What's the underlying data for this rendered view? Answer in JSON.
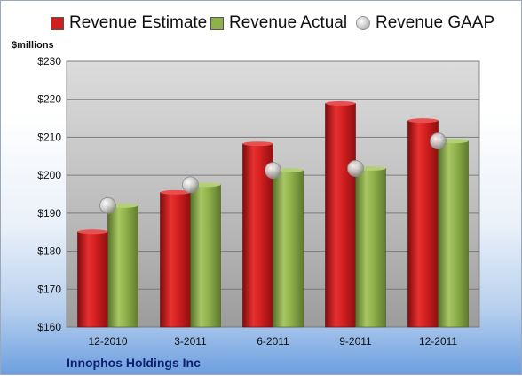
{
  "chart_data": {
    "type": "bar",
    "title": "Innophos Holdings Inc",
    "ylabel": "$millions",
    "categories": [
      "12-2010",
      "3-2011",
      "6-2011",
      "9-2011",
      "12-2011"
    ],
    "series": [
      {
        "name": "Revenue Estimate",
        "kind": "bar",
        "color": "#d11f1f",
        "values": [
          185.1,
          195.5,
          208.3,
          218.9,
          214.4
        ]
      },
      {
        "name": "Revenue Actual",
        "kind": "bar",
        "color": "#8fb04a",
        "values": [
          192.0,
          197.5,
          201.3,
          201.8,
          209.0
        ]
      },
      {
        "name": "Revenue GAAP",
        "kind": "marker",
        "color": "#c0c0c0",
        "values": [
          192.0,
          197.5,
          201.3,
          201.8,
          209.0
        ]
      }
    ],
    "ylim": [
      160,
      230
    ],
    "yticks": [
      "$160",
      "$170",
      "$180",
      "$190",
      "$200",
      "$210",
      "$220",
      "$230"
    ],
    "ytick_values": [
      160,
      170,
      180,
      190,
      200,
      210,
      220,
      230
    ],
    "grid": true,
    "legend": "top"
  }
}
